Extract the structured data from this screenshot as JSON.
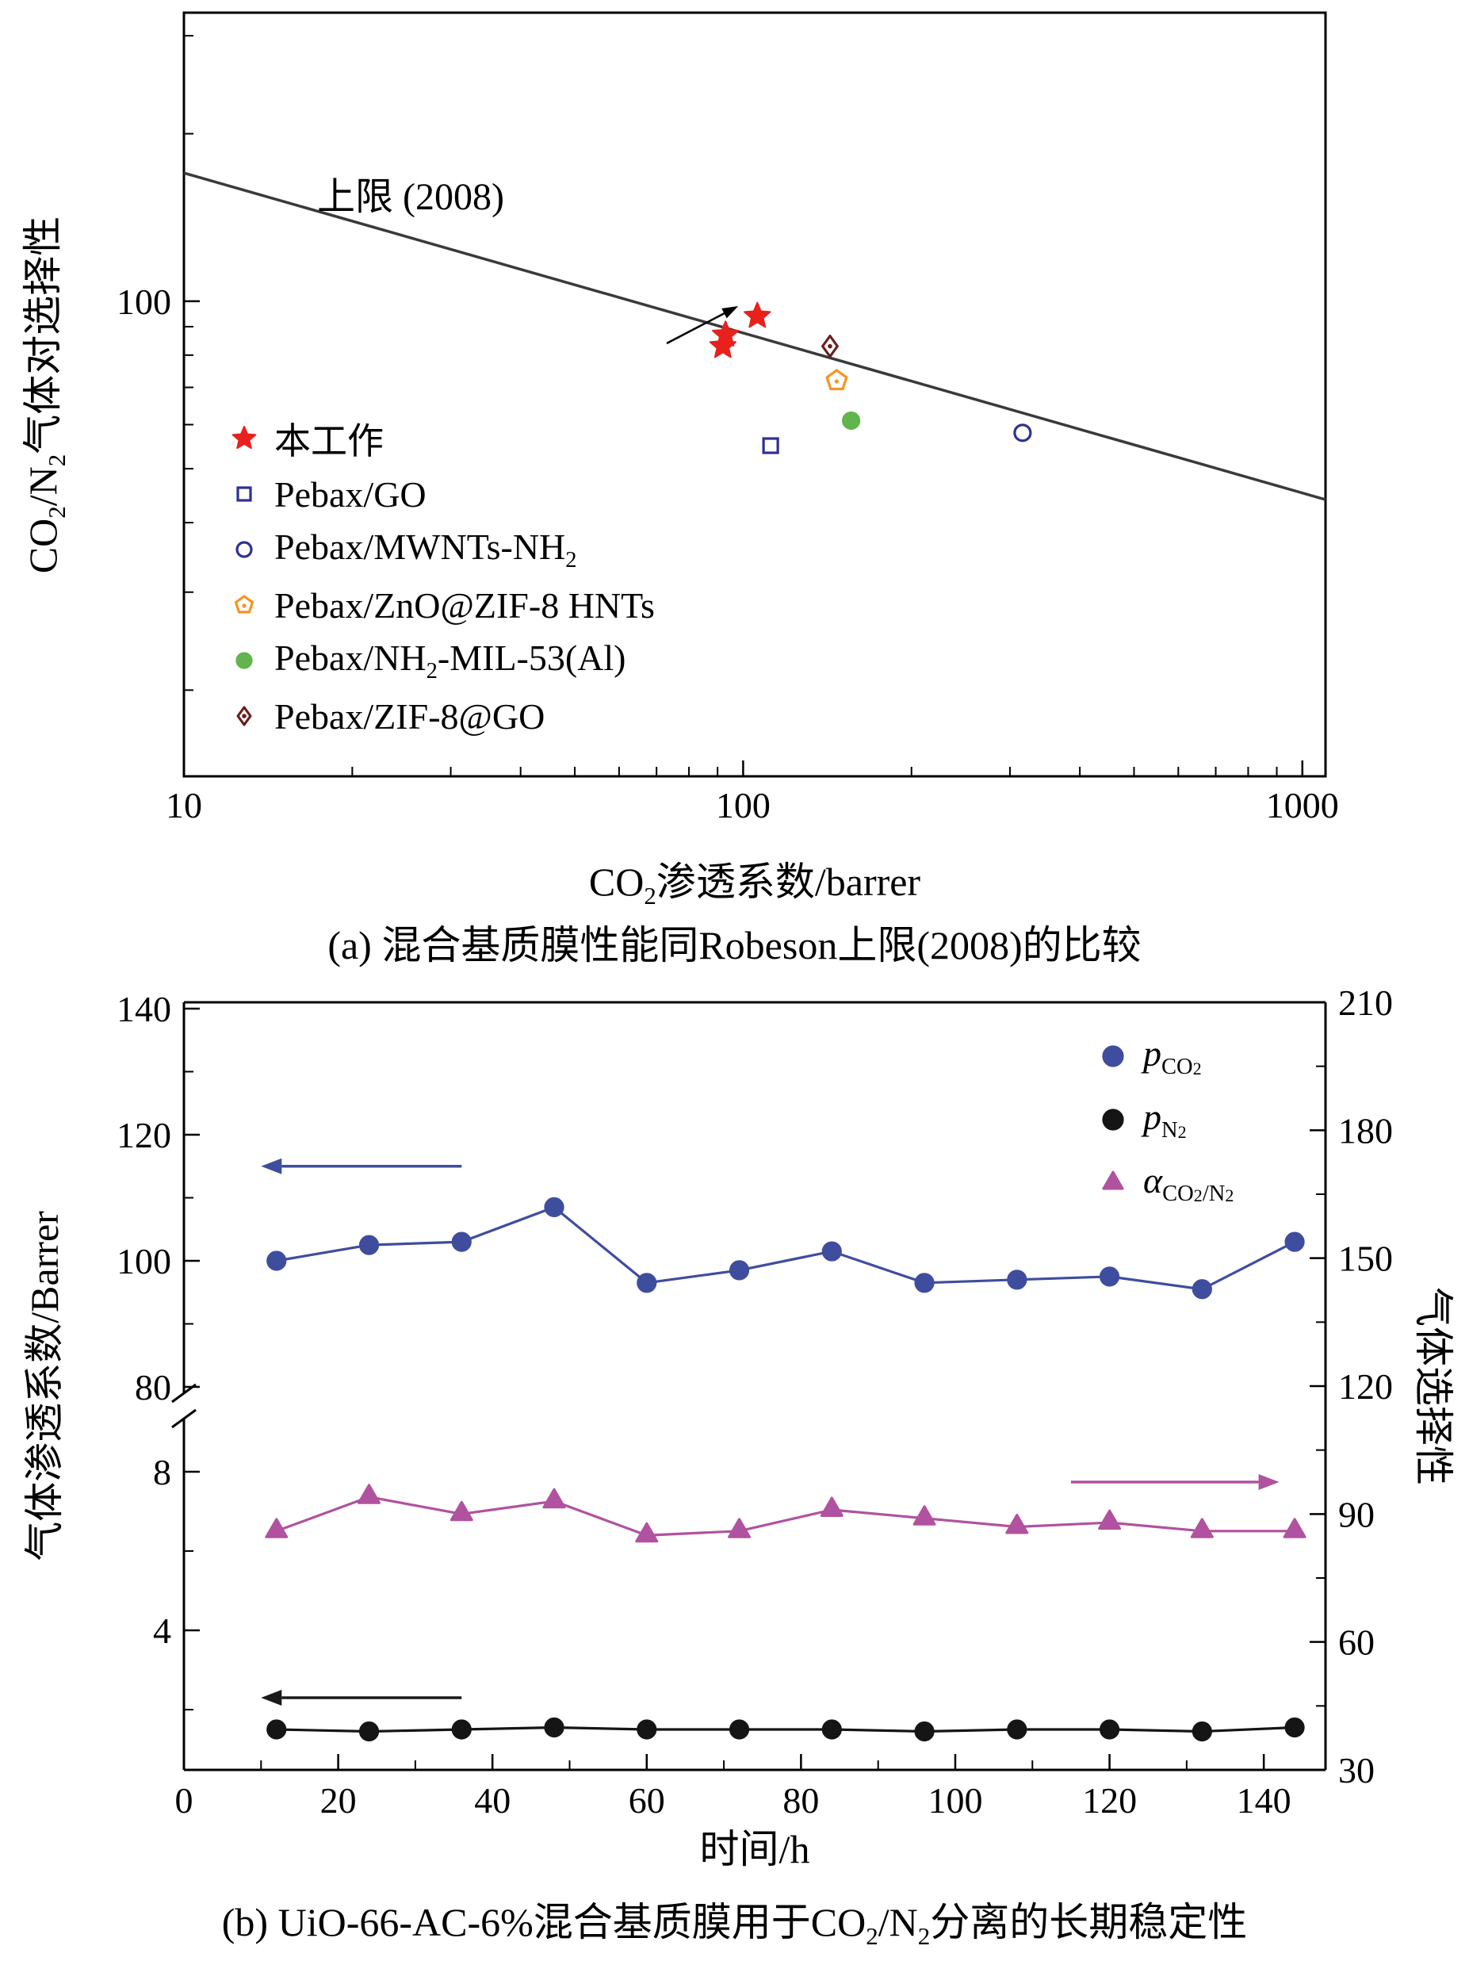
{
  "figure": {
    "background": "#ffffff"
  },
  "panel_a": {
    "upper_bound_label": "上限 (2008)",
    "ylabel": [
      {
        "t": "CO"
      },
      {
        "t": "2",
        "sub": true
      },
      {
        "t": "/N"
      },
      {
        "t": "2",
        "sub": true
      },
      {
        "t": "气体对选择性"
      }
    ],
    "xlabel": [
      {
        "t": "CO"
      },
      {
        "t": "2",
        "sub": true
      },
      {
        "t": "渗透系数/barrer"
      }
    ],
    "caption": "(a) 混合基质膜性能同Robeson上限(2008)的比较",
    "legend": [
      {
        "marker": "star",
        "color": "#e8211d",
        "filled": true,
        "label": [
          {
            "t": "本工作"
          }
        ]
      },
      {
        "marker": "square",
        "color": "#2e3192",
        "filled": false,
        "label": [
          {
            "t": "Pebax/GO"
          }
        ]
      },
      {
        "marker": "circle",
        "color": "#2e3192",
        "filled": false,
        "label": [
          {
            "t": "Pebax/MWNTs-NH"
          },
          {
            "t": "2",
            "sub": true
          }
        ]
      },
      {
        "marker": "pentagon",
        "color": "#f79421",
        "filled": false,
        "label": [
          {
            "t": "Pebax/ZnO@ZIF-8 HNTs"
          }
        ]
      },
      {
        "marker": "circle",
        "color": "#62b54c",
        "filled": true,
        "label": [
          {
            "t": "Pebax/NH"
          },
          {
            "t": "2",
            "sub": true
          },
          {
            "t": "-MIL-53(Al)"
          }
        ]
      },
      {
        "marker": "diamond",
        "color": "#6d1e1e",
        "filled": false,
        "label": [
          {
            "t": "Pebax/ZIF-8@GO"
          }
        ]
      }
    ]
  },
  "panel_b": {
    "ylabel_left": [
      {
        "t": "气体渗透系数/Barrer"
      }
    ],
    "ylabel_right": [
      {
        "t": "气体选择性"
      }
    ],
    "xlabel": [
      {
        "t": "时间/h"
      }
    ],
    "caption": [
      {
        "t": "(b) UiO-66-AC-6%混合基质膜用于CO"
      },
      {
        "t": "2",
        "sub": true
      },
      {
        "t": "/N"
      },
      {
        "t": "2",
        "sub": true
      },
      {
        "t": "分离的长期稳定性"
      }
    ],
    "legend": [
      {
        "marker": "circle",
        "color": "#3f4d9e",
        "filled": true,
        "label": [
          {
            "t": "p",
            "i": true
          },
          {
            "t": "CO",
            "sub": true
          },
          {
            "t": "2",
            "sub2": true
          }
        ]
      },
      {
        "marker": "circle",
        "color": "#151515",
        "filled": true,
        "label": [
          {
            "t": "p",
            "i": true
          },
          {
            "t": "N",
            "sub": true
          },
          {
            "t": "2",
            "sub2": true
          }
        ]
      },
      {
        "marker": "triangle",
        "color": "#b0529f",
        "filled": true,
        "label": [
          {
            "t": "α",
            "i": true
          },
          {
            "t": "CO",
            "sub": true
          },
          {
            "t": "2",
            "sub2": true
          },
          {
            "t": "/N",
            "sub": true
          },
          {
            "t": "2",
            "sub2": true
          }
        ]
      }
    ]
  },
  "chart_data": [
    {
      "id": "panel_a",
      "type": "scatter",
      "title": "(a) 混合基质膜性能同Robeson上限(2008)的比较",
      "xlabel": "CO2渗透系数/barrer",
      "ylabel": "CO2/N2气体对选择性",
      "xscale": "log",
      "yscale": "log",
      "xlim": [
        10,
        1100
      ],
      "ylim": [
        14,
        330
      ],
      "x_ticks": [
        10,
        100,
        1000
      ],
      "y_ticks": [
        100
      ],
      "grid": false,
      "legend_position": "lower-left-inside",
      "upper_bound_line": {
        "label": "上限 (2008)",
        "points": [
          [
            10,
            170
          ],
          [
            1100,
            44
          ]
        ],
        "color": "#3a3a3a"
      },
      "annotation_arrow": {
        "from": [
          73,
          84
        ],
        "to": [
          98,
          98
        ],
        "color": "#000000"
      },
      "series": [
        {
          "name": "本工作",
          "marker": "star",
          "color": "#e8211d",
          "filled": true,
          "points": [
            [
              106,
              94
            ],
            [
              93,
              87
            ],
            [
              92,
              83
            ]
          ]
        },
        {
          "name": "Pebax/GO",
          "marker": "square",
          "color": "#2e3192",
          "filled": false,
          "points": [
            [
              112,
              55
            ]
          ]
        },
        {
          "name": "Pebax/MWNTs-NH2",
          "marker": "circle",
          "color": "#2e3192",
          "filled": false,
          "points": [
            [
              316,
              58
            ]
          ]
        },
        {
          "name": "Pebax/ZnO@ZIF-8 HNTs",
          "marker": "pentagon",
          "color": "#f79421",
          "filled": false,
          "points": [
            [
              147,
              72
            ]
          ]
        },
        {
          "name": "Pebax/NH2-MIL-53(Al)",
          "marker": "circle",
          "color": "#62b54c",
          "filled": true,
          "points": [
            [
              156,
              61
            ]
          ]
        },
        {
          "name": "Pebax/ZIF-8@GO",
          "marker": "diamond",
          "color": "#6d1e1e",
          "filled": false,
          "points": [
            [
              143,
              83
            ]
          ]
        }
      ]
    },
    {
      "id": "panel_b",
      "type": "line",
      "title": "(b) UiO-66-AC-6%混合基质膜用于CO2/N2分离的长期稳定性",
      "xlabel": "时间/h",
      "ylabel_left": "气体渗透系数/Barrer",
      "ylabel_right": "气体选择性",
      "xlim": [
        0,
        148
      ],
      "x_ticks": [
        0,
        20,
        40,
        60,
        80,
        100,
        120,
        140
      ],
      "grid": false,
      "legend_position": "upper-right-inside",
      "left_axis": {
        "broken": true,
        "top_segment": {
          "range": [
            80,
            141
          ],
          "ticks": [
            80,
            100,
            120,
            140
          ],
          "minor_ticks": [
            90,
            110,
            130
          ]
        },
        "bottom_segment": {
          "range": [
            0.5,
            9
          ],
          "ticks": [
            4,
            8
          ],
          "minor_ticks": [
            2,
            6
          ]
        }
      },
      "right_axis": {
        "range": [
          30,
          210
        ],
        "ticks": [
          30,
          60,
          90,
          120,
          150,
          180,
          210
        ],
        "minor_ticks": [
          45,
          75,
          105,
          135,
          165,
          195
        ]
      },
      "x": [
        12,
        24,
        36,
        48,
        60,
        72,
        84,
        96,
        108,
        120,
        132,
        144
      ],
      "series": [
        {
          "name": "pCO2",
          "axis": "left",
          "marker": "circle",
          "color": "#3f4d9e",
          "values": [
            100,
            102.5,
            103,
            108.5,
            96.5,
            98.5,
            101.5,
            96.5,
            97,
            97.5,
            95.5,
            103
          ]
        },
        {
          "name": "pN2",
          "axis": "left",
          "marker": "circle",
          "color": "#151515",
          "values": [
            1.5,
            1.45,
            1.5,
            1.55,
            1.5,
            1.5,
            1.5,
            1.45,
            1.5,
            1.5,
            1.45,
            1.55
          ]
        },
        {
          "name": "alphaCO2/N2",
          "axis": "right",
          "marker": "triangle",
          "color": "#b0529f",
          "values": [
            86,
            94,
            90,
            93,
            85,
            86,
            91,
            89,
            87,
            88,
            86,
            86
          ]
        }
      ],
      "arrows": [
        {
          "for_series": "pCO2",
          "axis": "left",
          "y": 115,
          "x_tail": 36,
          "x_head": 10,
          "color": "#3f4d9e"
        },
        {
          "for_series": "alphaCO2/N2",
          "axis": "right",
          "y": 97.5,
          "x_tail": 115,
          "x_head": 142,
          "color": "#b0529f"
        },
        {
          "for_series": "pN2",
          "axis": "left",
          "y": 2.3,
          "x_tail": 36,
          "x_head": 10,
          "color": "#1a1a1a"
        }
      ]
    }
  ]
}
